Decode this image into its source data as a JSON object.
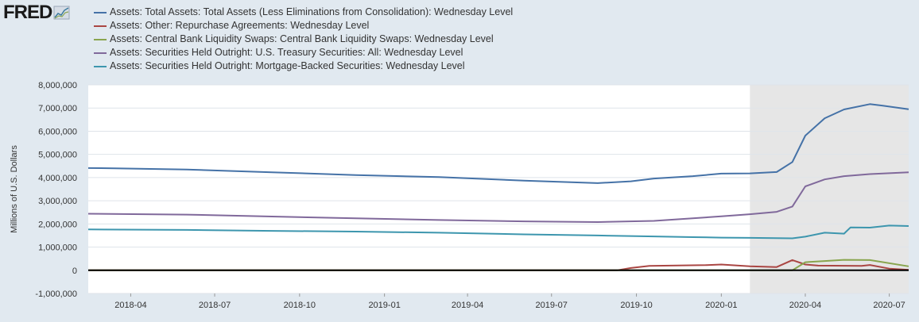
{
  "logo": {
    "text": "FRED",
    "icon": "trend-chart-icon"
  },
  "chart_data": {
    "type": "line",
    "ylabel": "Millions of U.S. Dollars",
    "ylim": [
      -1000000,
      8000000
    ],
    "yticks": [
      -1000000,
      0,
      1000000,
      2000000,
      3000000,
      4000000,
      5000000,
      6000000,
      7000000,
      8000000
    ],
    "ytick_labels": [
      "-1,000,000",
      "0",
      "1,000,000",
      "2,000,000",
      "3,000,000",
      "4,000,000",
      "5,000,000",
      "6,000,000",
      "7,000,000",
      "8,000,000"
    ],
    "x_start": "2018-02-14",
    "x_end": "2020-07-22",
    "xticks": [
      "2018-04-01",
      "2018-07-01",
      "2018-10-01",
      "2019-01-01",
      "2019-04-01",
      "2019-07-01",
      "2019-10-01",
      "2020-01-01",
      "2020-04-01",
      "2020-07-01"
    ],
    "xtick_labels": [
      "2018-04",
      "2018-07",
      "2018-10",
      "2019-01",
      "2019-04",
      "2019-07",
      "2019-10",
      "2020-01",
      "2020-04",
      "2020-07"
    ],
    "recession_shading": {
      "start": "2020-02-01",
      "end": "2020-07-22",
      "color": "#e6e6e6"
    },
    "zero_line": true,
    "series": [
      {
        "name": "Assets: Total Assets: Total Assets (Less Eliminations from Consolidation): Wednesday Level",
        "color": "#4572a7",
        "points": [
          [
            "2018-02-14",
            4410000
          ],
          [
            "2018-03-15",
            4400000
          ],
          [
            "2018-06-01",
            4350000
          ],
          [
            "2018-09-01",
            4230000
          ],
          [
            "2018-12-01",
            4110000
          ],
          [
            "2019-03-01",
            4020000
          ],
          [
            "2019-06-01",
            3870000
          ],
          [
            "2019-08-20",
            3760000
          ],
          [
            "2019-09-25",
            3840000
          ],
          [
            "2019-10-20",
            3960000
          ],
          [
            "2019-12-01",
            4060000
          ],
          [
            "2020-01-01",
            4170000
          ],
          [
            "2020-02-01",
            4180000
          ],
          [
            "2020-03-01",
            4240000
          ],
          [
            "2020-03-18",
            4670000
          ],
          [
            "2020-04-01",
            5810000
          ],
          [
            "2020-04-22",
            6560000
          ],
          [
            "2020-05-13",
            6940000
          ],
          [
            "2020-06-10",
            7170000
          ],
          [
            "2020-06-24",
            7100000
          ],
          [
            "2020-07-22",
            6950000
          ]
        ]
      },
      {
        "name": "Assets: Other: Repurchase Agreements: Wednesday Level",
        "color": "#aa4643",
        "points": [
          [
            "2018-02-14",
            0
          ],
          [
            "2019-09-10",
            0
          ],
          [
            "2019-09-25",
            100000
          ],
          [
            "2019-10-15",
            190000
          ],
          [
            "2019-12-15",
            220000
          ],
          [
            "2020-01-01",
            250000
          ],
          [
            "2020-02-01",
            170000
          ],
          [
            "2020-03-01",
            140000
          ],
          [
            "2020-03-18",
            440000
          ],
          [
            "2020-04-01",
            250000
          ],
          [
            "2020-04-15",
            200000
          ],
          [
            "2020-06-01",
            190000
          ],
          [
            "2020-06-10",
            230000
          ],
          [
            "2020-07-01",
            70000
          ],
          [
            "2020-07-22",
            20000
          ]
        ]
      },
      {
        "name": "Assets: Central Bank Liquidity Swaps: Central Bank Liquidity Swaps: Wednesday Level",
        "color": "#89a54e",
        "points": [
          [
            "2018-02-14",
            0
          ],
          [
            "2020-03-18",
            0
          ],
          [
            "2020-04-01",
            350000
          ],
          [
            "2020-04-22",
            400000
          ],
          [
            "2020-05-13",
            450000
          ],
          [
            "2020-06-10",
            440000
          ],
          [
            "2020-07-22",
            170000
          ]
        ]
      },
      {
        "name": "Assets: Securities Held Outright: U.S. Treasury Securities: All: Wednesday Level",
        "color": "#80699b",
        "points": [
          [
            "2018-02-14",
            2440000
          ],
          [
            "2018-06-01",
            2400000
          ],
          [
            "2018-09-01",
            2320000
          ],
          [
            "2018-12-01",
            2240000
          ],
          [
            "2019-03-01",
            2170000
          ],
          [
            "2019-06-01",
            2110000
          ],
          [
            "2019-08-20",
            2080000
          ],
          [
            "2019-10-20",
            2130000
          ],
          [
            "2019-12-01",
            2240000
          ],
          [
            "2020-01-01",
            2330000
          ],
          [
            "2020-02-01",
            2420000
          ],
          [
            "2020-03-01",
            2520000
          ],
          [
            "2020-03-18",
            2750000
          ],
          [
            "2020-04-01",
            3620000
          ],
          [
            "2020-04-22",
            3920000
          ],
          [
            "2020-05-13",
            4060000
          ],
          [
            "2020-06-10",
            4150000
          ],
          [
            "2020-07-22",
            4230000
          ]
        ]
      },
      {
        "name": "Assets: Securities Held Outright: Mortgage-Backed Securities: Wednesday Level",
        "color": "#3d96ae",
        "points": [
          [
            "2018-02-14",
            1760000
          ],
          [
            "2018-06-01",
            1740000
          ],
          [
            "2018-09-01",
            1700000
          ],
          [
            "2018-12-01",
            1670000
          ],
          [
            "2019-03-01",
            1620000
          ],
          [
            "2019-06-01",
            1550000
          ],
          [
            "2019-08-20",
            1500000
          ],
          [
            "2019-10-20",
            1460000
          ],
          [
            "2019-12-01",
            1430000
          ],
          [
            "2020-01-01",
            1410000
          ],
          [
            "2020-02-01",
            1400000
          ],
          [
            "2020-03-18",
            1380000
          ],
          [
            "2020-04-01",
            1450000
          ],
          [
            "2020-04-22",
            1620000
          ],
          [
            "2020-05-13",
            1580000
          ],
          [
            "2020-05-20",
            1850000
          ],
          [
            "2020-06-10",
            1840000
          ],
          [
            "2020-06-24",
            1900000
          ],
          [
            "2020-07-01",
            1930000
          ],
          [
            "2020-07-22",
            1910000
          ]
        ]
      }
    ]
  }
}
